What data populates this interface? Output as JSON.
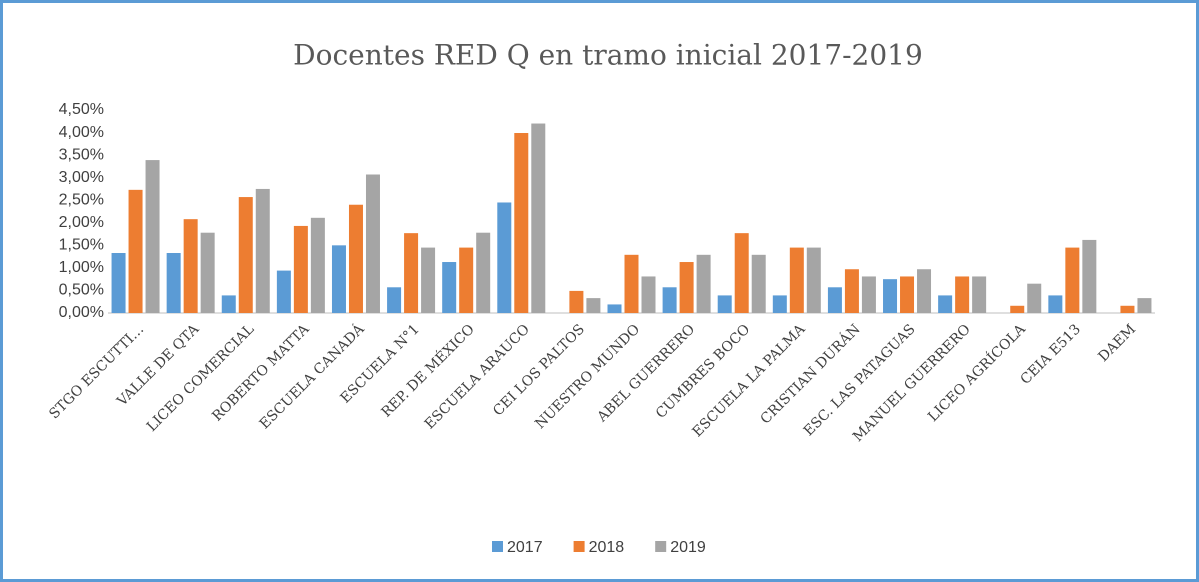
{
  "chart_data": {
    "type": "bar",
    "title": "Docentes RED Q en tramo inicial 2017-2019",
    "categories": [
      "STGO ESCUTTI…",
      "VALLE DE QTA",
      "LICEO COMERCIAL",
      "ROBERTO MATTA",
      "ESCUELA CANADÁ",
      "ESCUELA N°1",
      "REP. DE MÉXICO",
      "ESCUELA ARAUCO",
      "CEI LOS PALTOS",
      "NUESTRO MUNDO",
      "ABEL GUERRERO",
      "CUMBRES BOCO",
      "ESCUELA LA PALMA",
      "CRISTIAN DURÁN",
      "ESC. LAS PATAGUAS",
      "MANUEL GUERRERO",
      "LICEO AGRÍCOLA",
      "CEIA E513",
      "DAEM"
    ],
    "series": [
      {
        "name": "2017",
        "color": "#5b9bd5",
        "values": [
          1.33,
          1.33,
          0.39,
          0.94,
          1.5,
          0.57,
          1.13,
          2.45,
          0,
          0.19,
          0.57,
          0.39,
          0.39,
          0.57,
          0.75,
          0.39,
          0,
          0.39,
          0
        ]
      },
      {
        "name": "2018",
        "color": "#ed7d31",
        "values": [
          2.73,
          2.08,
          2.57,
          1.93,
          2.4,
          1.77,
          1.45,
          3.99,
          0.49,
          1.29,
          1.13,
          1.77,
          1.45,
          0.97,
          0.81,
          0.81,
          0.16,
          1.45,
          0.16
        ]
      },
      {
        "name": "2019",
        "color": "#a5a5a5",
        "values": [
          3.39,
          1.78,
          2.75,
          2.11,
          3.07,
          1.45,
          1.78,
          4.2,
          0.33,
          0.81,
          1.29,
          1.29,
          1.45,
          0.81,
          0.97,
          0.81,
          0.65,
          1.62,
          0.33
        ]
      }
    ],
    "ylim": [
      0,
      4.5
    ],
    "yticks": [
      {
        "value": 0,
        "label": "0,00%"
      },
      {
        "value": 0.5,
        "label": "0,50%"
      },
      {
        "value": 1,
        "label": "1,00%"
      },
      {
        "value": 1.5,
        "label": "1,50%"
      },
      {
        "value": 2,
        "label": "2,00%"
      },
      {
        "value": 2.5,
        "label": "2,50%"
      },
      {
        "value": 3,
        "label": "3,00%"
      },
      {
        "value": 3.5,
        "label": "3,50%"
      },
      {
        "value": 4,
        "label": "4,00%"
      },
      {
        "value": 4.5,
        "label": "4,50%"
      }
    ],
    "grid": false
  }
}
